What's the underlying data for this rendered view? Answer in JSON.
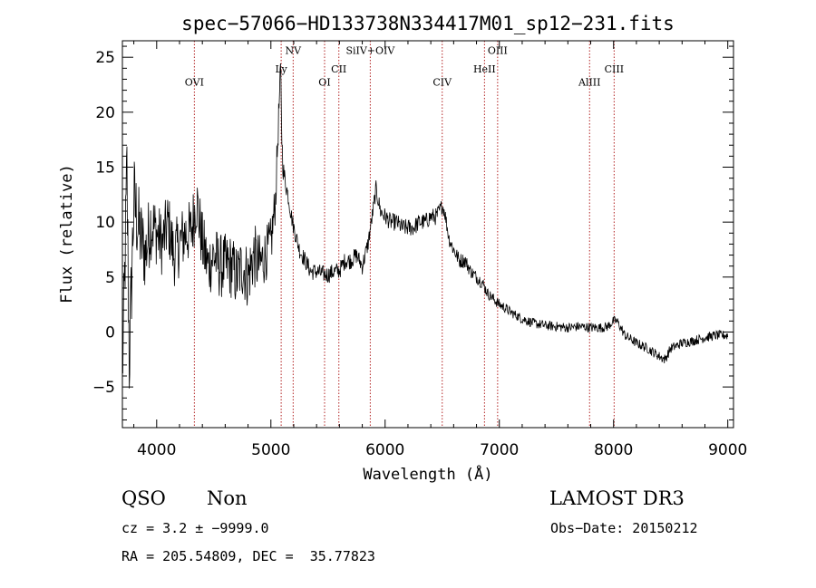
{
  "chart_data": {
    "type": "line",
    "title": "spec−57066−HD133738N334417M01_sp12−231.fits",
    "xlabel": "Wavelength (Å)",
    "ylabel": "Flux (relative)",
    "xlim": [
      3700,
      9050
    ],
    "ylim": [
      -8.7,
      26.5
    ],
    "x_ticks": [
      4000,
      5000,
      6000,
      7000,
      8000,
      9000
    ],
    "y_ticks": [
      -5,
      0,
      5,
      10,
      15,
      20,
      25
    ],
    "grid": false,
    "line_color": "#000000",
    "marker_color": "#b22222",
    "spectrum_anchors": {
      "x": [
        3700,
        3720,
        3740,
        3760,
        3800,
        3850,
        3900,
        3950,
        4000,
        4050,
        4100,
        4150,
        4200,
        4250,
        4300,
        4350,
        4400,
        4450,
        4500,
        4550,
        4600,
        4650,
        4700,
        4750,
        4800,
        4850,
        4900,
        4950,
        5000,
        5040,
        5070,
        5085,
        5095,
        5105,
        5120,
        5150,
        5180,
        5200,
        5250,
        5300,
        5350,
        5400,
        5450,
        5500,
        5550,
        5600,
        5650,
        5700,
        5750,
        5800,
        5850,
        5880,
        5920,
        5960,
        6000,
        6050,
        6100,
        6150,
        6200,
        6250,
        6300,
        6350,
        6400,
        6450,
        6500,
        6520,
        6560,
        6600,
        6650,
        6700,
        6750,
        6800,
        6850,
        6900,
        6950,
        7000,
        7050,
        7100,
        7150,
        7200,
        7300,
        7400,
        7500,
        7600,
        7700,
        7800,
        7900,
        7950,
        8000,
        8030,
        8100,
        8200,
        8300,
        8400,
        8450,
        8500,
        8600,
        8700,
        8800,
        8900,
        9000
      ],
      "y": [
        -4,
        5,
        14,
        -3,
        12,
        9,
        7,
        10,
        9,
        8,
        10,
        7,
        8,
        9,
        9,
        12,
        8,
        6,
        7,
        6,
        6,
        6,
        5,
        6,
        5,
        7,
        6,
        7,
        8,
        12,
        20,
        24,
        18,
        15,
        14,
        12.5,
        10.5,
        9.5,
        7.5,
        6.5,
        5.5,
        5.5,
        5.3,
        5.2,
        5.5,
        5.6,
        6.5,
        6.5,
        7,
        6,
        8,
        10,
        13,
        11,
        10.5,
        10,
        10,
        9.5,
        9.5,
        9.5,
        10,
        10,
        10.5,
        10.5,
        11.5,
        11,
        8.5,
        7.5,
        6.5,
        6.5,
        5.5,
        5,
        4.5,
        3.5,
        3,
        2.5,
        2.2,
        1.8,
        1.5,
        1.2,
        0.8,
        0.6,
        0.5,
        0.4,
        0.5,
        0.4,
        0.4,
        0.5,
        1,
        1,
        -0.3,
        -1,
        -1.5,
        -2.2,
        -2.5,
        -1.5,
        -1,
        -0.8,
        -0.5,
        -0.3,
        -0.3
      ],
      "noise": [
        4,
        4,
        6,
        4,
        4.5,
        4,
        3.5,
        3.5,
        3,
        3,
        3,
        3,
        3,
        3,
        3,
        3,
        3,
        3,
        3,
        3,
        3,
        3,
        3,
        3,
        3,
        3,
        3,
        2.5,
        2.5,
        2,
        1.5,
        1.2,
        1.2,
        1,
        1,
        0.8,
        0.8,
        0.8,
        0.8,
        0.8,
        0.8,
        0.8,
        0.8,
        0.8,
        0.8,
        0.8,
        0.8,
        0.8,
        0.8,
        0.8,
        0.8,
        0.8,
        0.8,
        0.8,
        0.8,
        0.8,
        0.8,
        0.8,
        0.8,
        0.8,
        0.8,
        0.8,
        0.8,
        0.8,
        0.7,
        0.7,
        0.7,
        0.7,
        0.7,
        0.7,
        0.6,
        0.6,
        0.6,
        0.5,
        0.5,
        0.5,
        0.5,
        0.45,
        0.45,
        0.45,
        0.45,
        0.45,
        0.45,
        0.45,
        0.45,
        0.45,
        0.45,
        0.45,
        0.45,
        0.45,
        0.45,
        0.45,
        0.45,
        0.45,
        0.45,
        0.45,
        0.45,
        0.45,
        0.45,
        0.45,
        0.45
      ]
    },
    "lines": [
      {
        "label": "OVI",
        "x": 4330,
        "label_y": 22.4
      },
      {
        "label": "Ly",
        "x": 5090,
        "label_y": 23.6
      },
      {
        "label": "NV",
        "x": 5195,
        "label_y": 25.3
      },
      {
        "label": "OI",
        "x": 5470,
        "label_y": 22.4
      },
      {
        "label": "CII",
        "x": 5595,
        "label_y": 23.6
      },
      {
        "label": "SiIV+OIV",
        "x": 5870,
        "label_y": 25.3
      },
      {
        "label": "CIV",
        "x": 6500,
        "label_y": 22.4
      },
      {
        "label": "HeII",
        "x": 6870,
        "label_y": 23.6
      },
      {
        "label": "OIII",
        "x": 6985,
        "label_y": 25.3
      },
      {
        "label": "AlIII",
        "x": 7790,
        "label_y": 22.4
      },
      {
        "label": "CIII",
        "x": 8005,
        "label_y": 23.6
      }
    ]
  },
  "info": {
    "class": "QSO",
    "subclass": "Non",
    "survey": "LAMOST DR3",
    "cz": "cz = 3.2 ± −9999.0",
    "obs_date": "Obs−Date: 20150212",
    "coords": "RA = 205.54809, DEC =  35.77823"
  }
}
